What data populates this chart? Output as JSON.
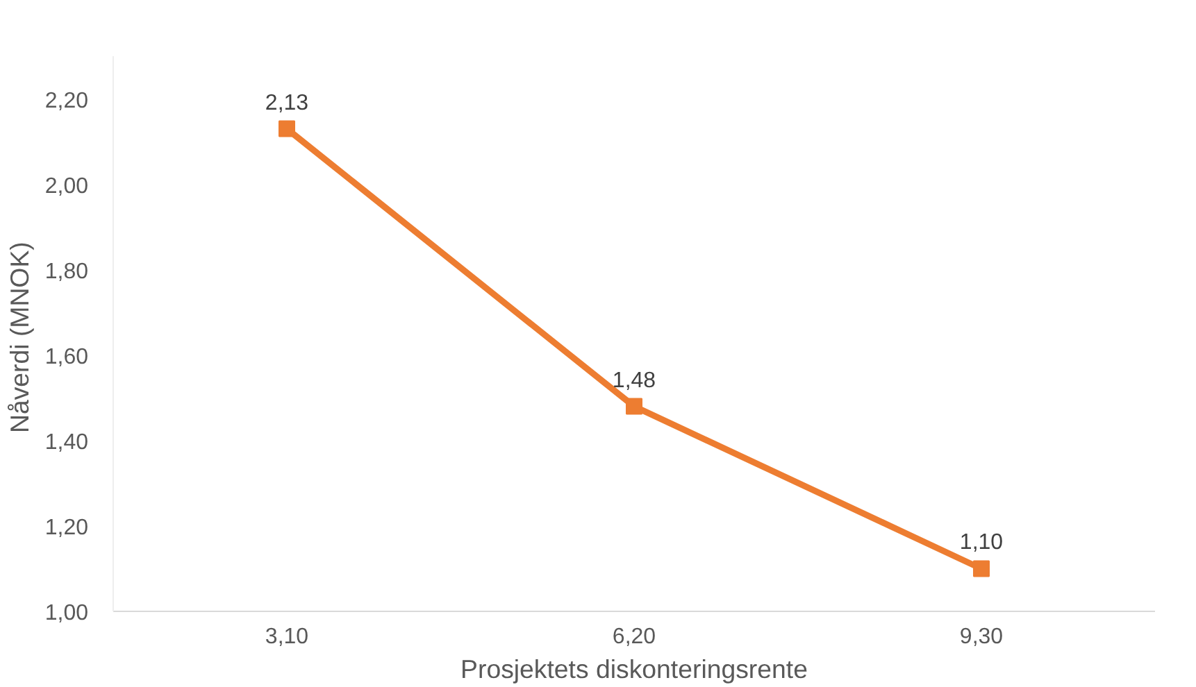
{
  "chart_data": {
    "type": "line",
    "xlabel": "Prosjektets diskonteringsrente",
    "ylabel": "Nåverdi  (MNOK)",
    "categories": [
      "3,10",
      "6,20",
      "9,30"
    ],
    "series": [
      {
        "color": "#ed7d31",
        "values": [
          2.13,
          1.48,
          1.1
        ],
        "value_labels": [
          "2,13",
          "1,48",
          "1,10"
        ]
      }
    ],
    "ylim": [
      1.0,
      2.3
    ],
    "yticks": [
      {
        "value": 1.0,
        "label": "1,00"
      },
      {
        "value": 1.2,
        "label": "1,20"
      },
      {
        "value": 1.4,
        "label": "1,40"
      },
      {
        "value": 1.6,
        "label": "1,60"
      },
      {
        "value": 1.8,
        "label": "1,80"
      },
      {
        "value": 2.0,
        "label": "2,00"
      },
      {
        "value": 2.2,
        "label": "2,20"
      }
    ],
    "marker": "square",
    "line_style": "solid",
    "grid": false
  }
}
